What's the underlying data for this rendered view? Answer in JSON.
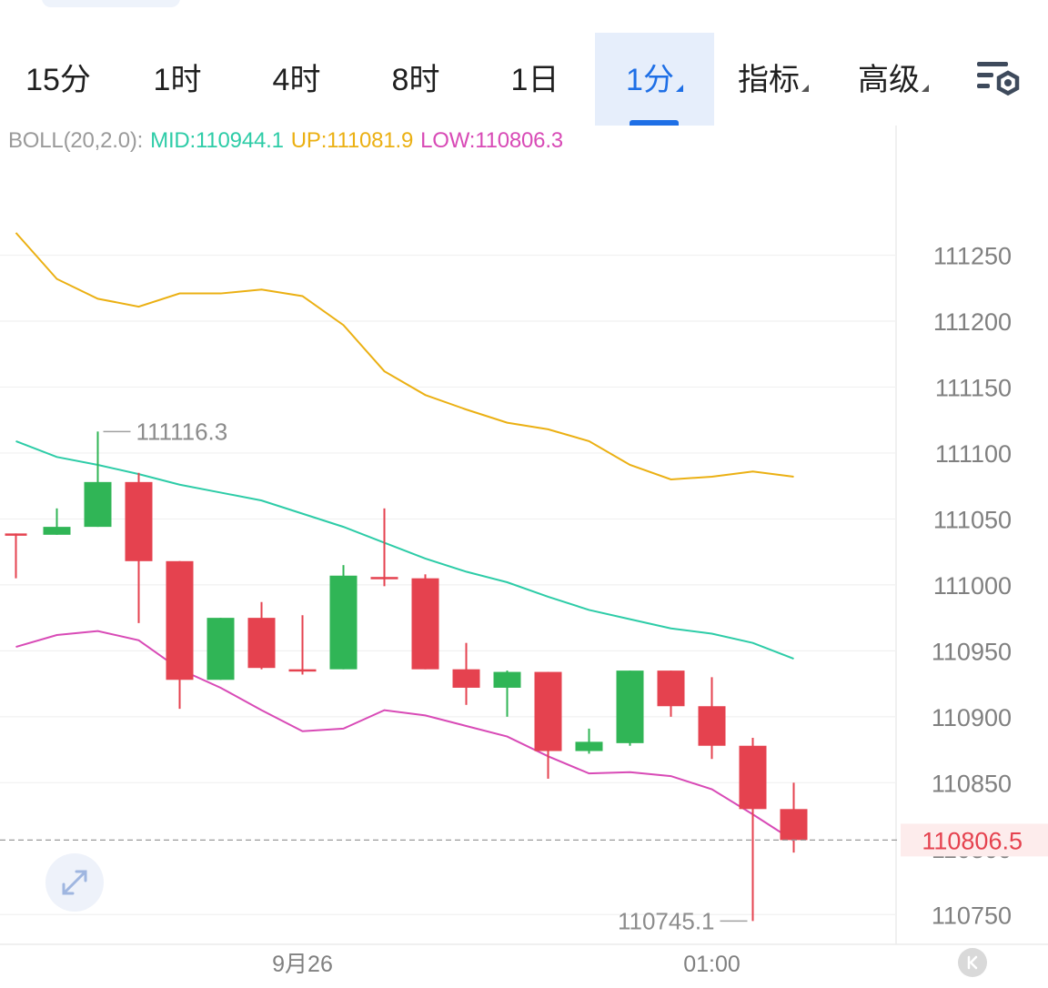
{
  "toolbar": {
    "tabs": [
      {
        "label": "15分",
        "dropdown": false,
        "active": false
      },
      {
        "label": "1时",
        "dropdown": false,
        "active": false
      },
      {
        "label": "4时",
        "dropdown": false,
        "active": false
      },
      {
        "label": "8时",
        "dropdown": false,
        "active": false
      },
      {
        "label": "1日",
        "dropdown": false,
        "active": false
      },
      {
        "label": "1分",
        "dropdown": true,
        "active": true
      },
      {
        "label": "指标",
        "dropdown": true,
        "active": false
      },
      {
        "label": "高级",
        "dropdown": true,
        "active": false
      }
    ],
    "settings_icon": "chart-settings-icon"
  },
  "legend": {
    "name": "BOLL(20,2.0):",
    "mid": "MID:110944.1",
    "up": "UP:111081.9",
    "low": "LOW:110806.3"
  },
  "colors": {
    "accent": "#1e6fe6",
    "up_candle": "#30b556",
    "down_candle": "#e5424f",
    "boll_mid": "#2dcca7",
    "boll_up": "#ebb013",
    "boll_low": "#d84ab6",
    "price_tag_bg": "#fdecec"
  },
  "chart_data": {
    "type": "candlestick",
    "indicator": "BOLL(20,2.0)",
    "x_labels": [
      {
        "index": 7,
        "label": "9月26"
      },
      {
        "index": 17,
        "label": "01:00"
      }
    ],
    "yticks": [
      111250,
      111200,
      111150,
      111100,
      111050,
      111000,
      110950,
      110900,
      110850,
      110750
    ],
    "y_range": [
      110730,
      111285
    ],
    "grid": true,
    "candles": [
      {
        "open": 111039,
        "high": 111039,
        "low": 111005,
        "close": 111039
      },
      {
        "open": 111038,
        "high": 111058,
        "low": 111038,
        "close": 111044
      },
      {
        "open": 111044,
        "high": 111116.3,
        "low": 111044,
        "close": 111078
      },
      {
        "open": 111078,
        "high": 111085,
        "low": 110971,
        "close": 111018
      },
      {
        "open": 111018,
        "high": 111018,
        "low": 110906,
        "close": 110928
      },
      {
        "open": 110928,
        "high": 110975,
        "low": 110928,
        "close": 110975
      },
      {
        "open": 110975,
        "high": 110987,
        "low": 110936,
        "close": 110937
      },
      {
        "open": 110936,
        "high": 110977,
        "low": 110932,
        "close": 110936
      },
      {
        "open": 110936,
        "high": 111015,
        "low": 110936,
        "close": 111007
      },
      {
        "open": 111006,
        "high": 111058,
        "low": 110999,
        "close": 111005
      },
      {
        "open": 111005,
        "high": 111008,
        "low": 110936,
        "close": 110936
      },
      {
        "open": 110936,
        "high": 110956,
        "low": 110909,
        "close": 110922
      },
      {
        "open": 110922,
        "high": 110935,
        "low": 110900,
        "close": 110934
      },
      {
        "open": 110934,
        "high": 110934,
        "low": 110853,
        "close": 110874
      },
      {
        "open": 110874,
        "high": 110891,
        "low": 110872,
        "close": 110881
      },
      {
        "open": 110880,
        "high": 110935,
        "low": 110878,
        "close": 110935
      },
      {
        "open": 110935,
        "high": 110935,
        "low": 110900,
        "close": 110908
      },
      {
        "open": 110908,
        "high": 110930,
        "low": 110868,
        "close": 110878
      },
      {
        "open": 110878,
        "high": 110884,
        "low": 110745.1,
        "close": 110830
      },
      {
        "open": 110830,
        "high": 110850,
        "low": 110797,
        "close": 110806.5
      }
    ],
    "boll_up": [
      111267,
      111232,
      111217,
      111211,
      111221,
      111221,
      111224,
      111219,
      111197,
      111162,
      111144,
      111133,
      111123,
      111118,
      111109,
      111091,
      111080,
      111082,
      111086,
      111082
    ],
    "boll_mid": [
      111109,
      111097,
      111091,
      111084,
      111076,
      111070,
      111064,
      111054,
      111044,
      111032,
      111020,
      111010,
      111002,
      110991,
      110981,
      110974,
      110967,
      110963,
      110956,
      110944
    ],
    "boll_low": [
      110953,
      110962,
      110965,
      110958,
      110936,
      110922,
      110905,
      110889,
      110891,
      110905,
      110901,
      110893,
      110885,
      110870,
      110857,
      110858,
      110855,
      110845,
      110826,
      110806
    ],
    "max_label": "111116.3",
    "min_label": "110745.1",
    "last_price": "110806.5"
  }
}
